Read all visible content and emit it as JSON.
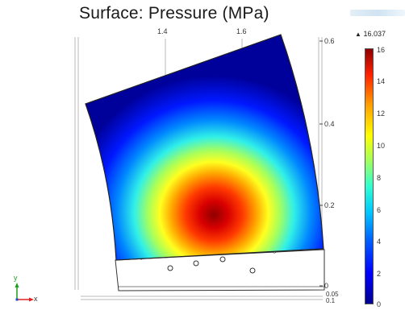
{
  "plot": {
    "title": "Surface: Pressure (MPa)",
    "top_ticks": [
      "1.4",
      "1.6"
    ],
    "right_ticks": [
      "0.6",
      "0.4",
      "0.2",
      "0"
    ],
    "right_ticks_bottom_extra": [
      "0.05",
      "0.1"
    ]
  },
  "colorbar": {
    "max_label": "16.037",
    "ticks": [
      "16",
      "14",
      "12",
      "10",
      "8",
      "6",
      "4",
      "2",
      "0"
    ],
    "colors": {
      "low": "#00008f",
      "mid": "#a0ff60",
      "high": "#8f0000"
    }
  },
  "axes_icon": {
    "y_label": "y",
    "x_label": "x",
    "y_color": "#1aa01a",
    "x_color": "#e02020"
  },
  "icons": [
    "axes-triad-icon",
    "max-marker-icon"
  ]
}
